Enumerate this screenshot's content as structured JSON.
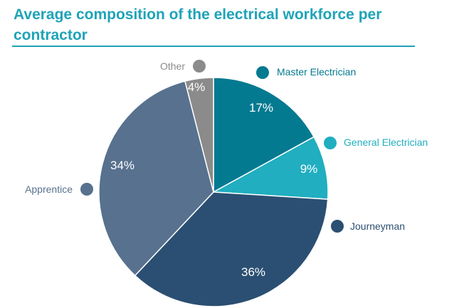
{
  "title": "Average composition of the electrical workforce per contractor",
  "chart_data": {
    "type": "pie",
    "title": "Average composition of the electrical workforce per contractor",
    "slices": [
      {
        "name": "Master Electrician",
        "value": 17,
        "label": "17%",
        "color": "#047a91"
      },
      {
        "name": "General Electrician",
        "value": 9,
        "label": "9%",
        "color": "#20aec0"
      },
      {
        "name": "Journeyman",
        "value": 36,
        "label": "36%",
        "color": "#2b4f72"
      },
      {
        "name": "Apprentice",
        "value": 34,
        "label": "34%",
        "color": "#57718f"
      },
      {
        "name": "Other",
        "value": 4,
        "label": "4%",
        "color": "#8b8b8b"
      }
    ],
    "start_angle": "12 o'clock",
    "direction": "clockwise",
    "legend": "outside labels with colored dots"
  }
}
